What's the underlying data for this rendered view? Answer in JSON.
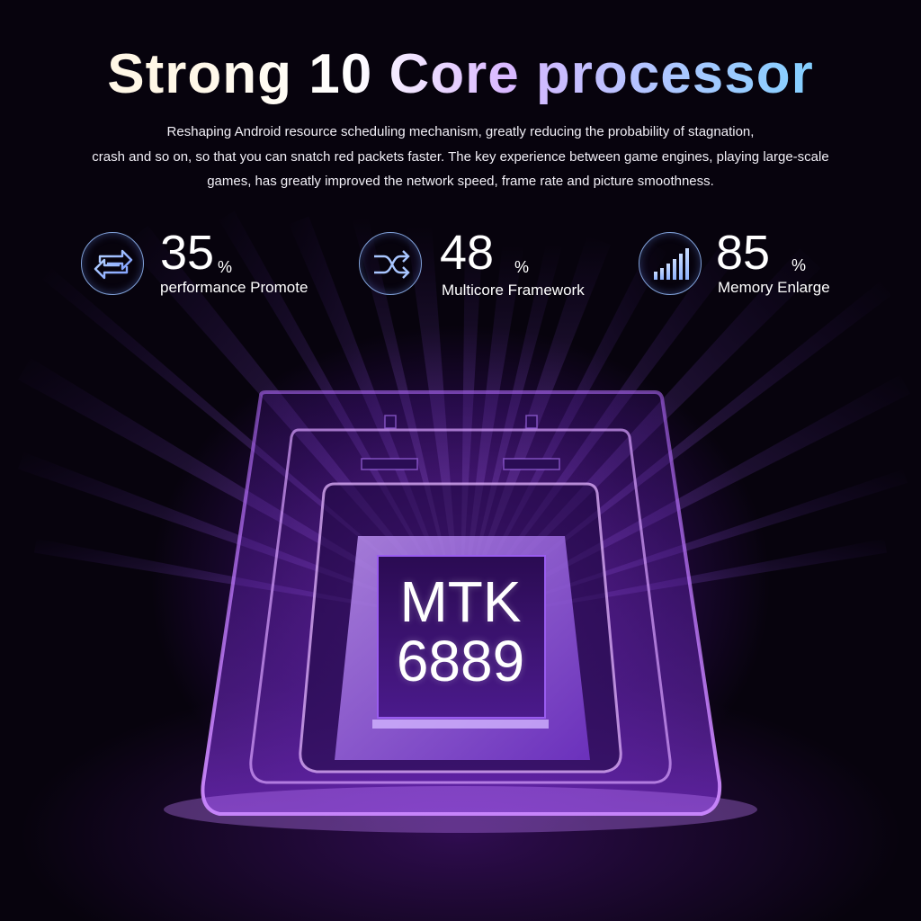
{
  "title": "Strong 10 Core processor",
  "description": [
    "Reshaping Android resource scheduling mechanism, greatly reducing the probability of stagnation,",
    "crash and so on, so that you can snatch red packets faster. The key experience between game engines, playing large-scale",
    "games, has greatly improved the network speed, frame rate and picture smoothness."
  ],
  "stats": [
    {
      "icon": "swap-arrows-icon",
      "value": "35",
      "unit": "%",
      "label": "performance Promote"
    },
    {
      "icon": "shuffle-icon",
      "value": "48",
      "unit": "%",
      "label": "Multicore Framework"
    },
    {
      "icon": "signal-bars-icon",
      "value": "85",
      "unit": "%",
      "label": "Memory Enlarge"
    }
  ],
  "chip": {
    "line1": "MTK",
    "line2": "6889"
  },
  "colors": {
    "background": "#07030d",
    "glow": "#a83cff",
    "icon_stroke": "#96beff",
    "text": "#ffffff"
  }
}
